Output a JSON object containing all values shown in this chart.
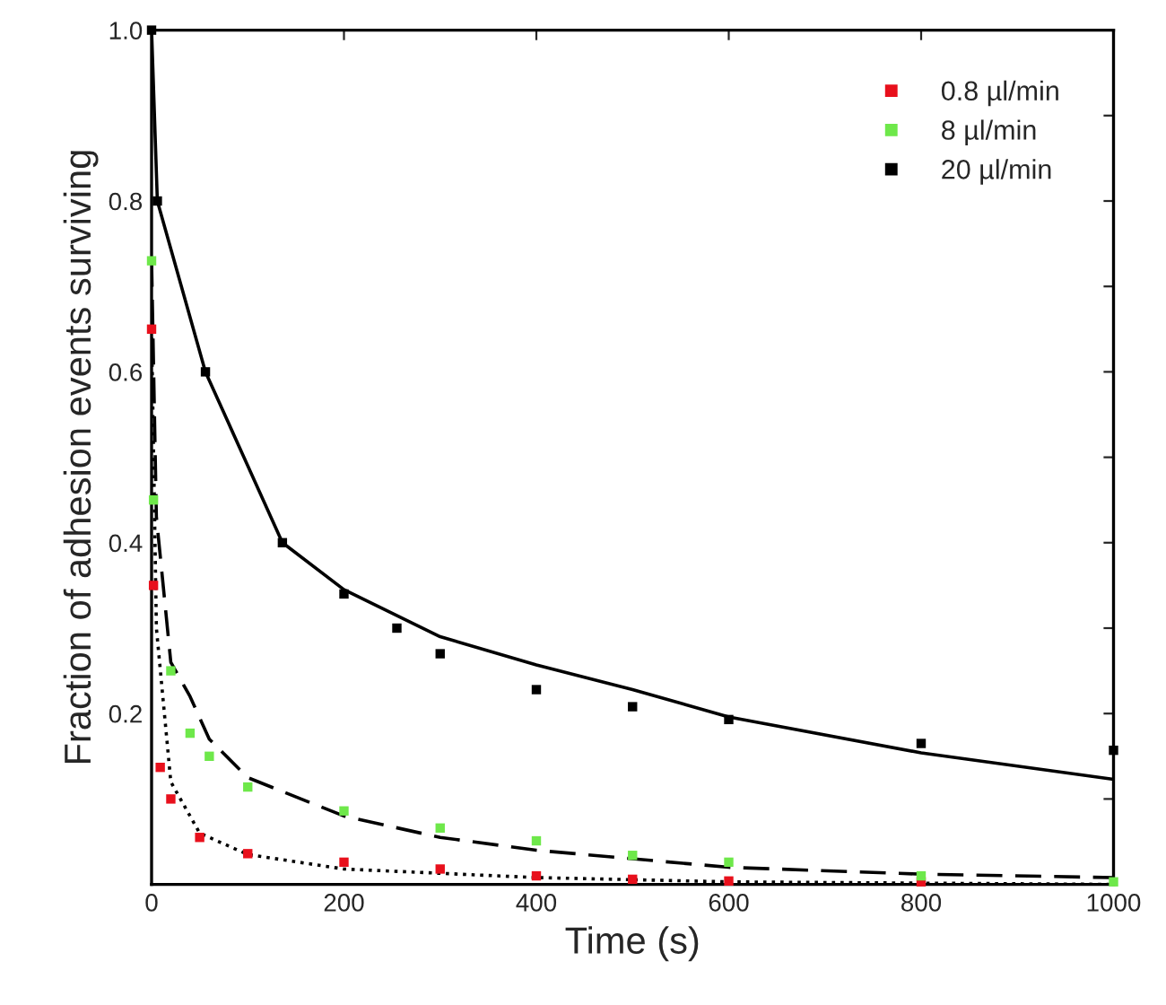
{
  "chart_data": {
    "type": "scatter",
    "xlabel": "Time (s)",
    "ylabel": "Fraction of adhesion events surviving",
    "xlim": [
      0,
      1000
    ],
    "ylim": [
      0,
      1
    ],
    "xticks": [
      0,
      200,
      400,
      600,
      800,
      1000
    ],
    "yticks": [
      {
        "value": 0.1,
        "label": null
      },
      0.2,
      {
        "value": 0.3,
        "label": null
      },
      0.4,
      {
        "value": 0.5,
        "label": null
      },
      0.6,
      {
        "value": 0.7,
        "label": null
      },
      0.8,
      {
        "value": 0.9,
        "label": null
      },
      {
        "value": 1.0,
        "label": "1.0"
      }
    ],
    "grid": false,
    "legend": "top right",
    "series": [
      {
        "name": "0.8 µl/min",
        "color": "#e8101c",
        "marker": "square",
        "x": [
          0,
          2,
          9,
          20,
          50,
          100,
          200,
          300,
          400,
          500,
          600,
          800
        ],
        "values": [
          0.65,
          0.35,
          0.137,
          0.1,
          0.055,
          0.036,
          0.026,
          0.018,
          0.01,
          0.006,
          0.004,
          0.003
        ]
      },
      {
        "name": "8 µl/min",
        "color": "#6ee84a",
        "marker": "square",
        "x": [
          0,
          2,
          20,
          40,
          60,
          100,
          200,
          300,
          400,
          500,
          600,
          800,
          1000
        ],
        "values": [
          0.73,
          0.45,
          0.25,
          0.177,
          0.15,
          0.114,
          0.086,
          0.066,
          0.051,
          0.034,
          0.026,
          0.01,
          0.003
        ]
      },
      {
        "name": "20 µl/min",
        "color": "#000000",
        "marker": "square",
        "x": [
          0,
          6,
          56,
          136,
          200,
          255,
          300,
          400,
          500,
          600,
          800,
          1000
        ],
        "values": [
          1.0,
          0.8,
          0.6,
          0.4,
          0.34,
          0.3,
          0.27,
          0.228,
          0.208,
          0.193,
          0.165,
          0.157
        ]
      },
      {
        "type": "line",
        "line_style": "dotted",
        "color": "#000000",
        "x": [
          0,
          5,
          20,
          50,
          100,
          200,
          400,
          600,
          1000
        ],
        "values": [
          0.65,
          0.3,
          0.12,
          0.06,
          0.035,
          0.018,
          0.008,
          0.003,
          0.0
        ]
      },
      {
        "type": "line",
        "line_style": "dashed",
        "color": "#000000",
        "x": [
          0,
          5,
          20,
          40,
          60,
          100,
          200,
          300,
          400,
          600,
          800,
          1000
        ],
        "values": [
          0.73,
          0.43,
          0.26,
          0.22,
          0.17,
          0.125,
          0.08,
          0.055,
          0.04,
          0.02,
          0.012,
          0.008
        ]
      },
      {
        "type": "line",
        "line_style": "solid",
        "color": "#000000",
        "x": [
          0,
          6,
          56,
          136,
          200,
          300,
          400,
          500,
          600,
          800,
          1000
        ],
        "values": [
          1.0,
          0.8,
          0.6,
          0.4,
          0.345,
          0.29,
          0.257,
          0.228,
          0.196,
          0.154,
          0.123
        ]
      }
    ]
  }
}
